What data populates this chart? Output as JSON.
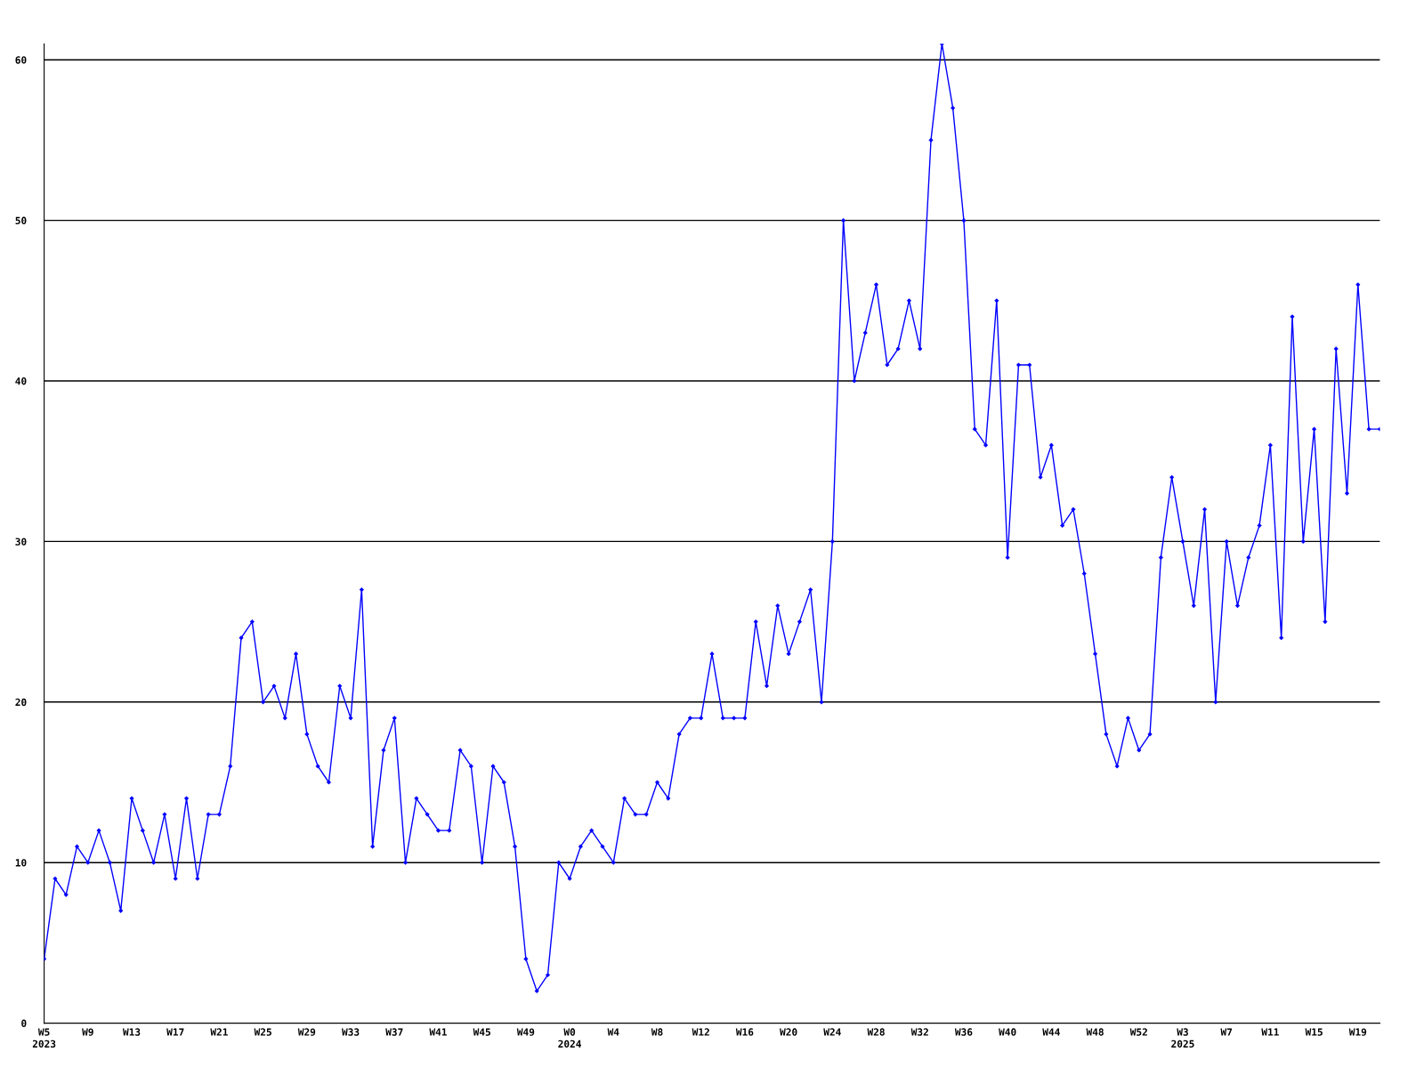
{
  "chart_data": {
    "type": "line",
    "color": "#0000ff",
    "marker": "diamond",
    "line_style": "solid",
    "grid": "y",
    "legend": false,
    "categories": [
      "W5\n2023",
      null,
      null,
      null,
      "W9",
      null,
      null,
      null,
      "W13",
      null,
      null,
      null,
      "W17",
      null,
      null,
      null,
      "W21",
      null,
      null,
      null,
      "W25",
      null,
      null,
      null,
      "W29",
      null,
      null,
      null,
      "W33",
      null,
      null,
      null,
      "W37",
      null,
      null,
      null,
      "W41",
      null,
      null,
      null,
      "W45",
      null,
      null,
      null,
      "W49",
      null,
      null,
      null,
      "W0\n2024",
      null,
      null,
      null,
      "W4",
      null,
      null,
      null,
      "W8",
      null,
      null,
      null,
      "W12",
      null,
      null,
      null,
      "W16",
      null,
      null,
      null,
      "W20",
      null,
      null,
      null,
      "W24",
      null,
      null,
      null,
      "W28",
      null,
      null,
      null,
      "W32",
      null,
      null,
      null,
      "W36",
      null,
      null,
      null,
      "W40",
      null,
      null,
      null,
      "W44",
      null,
      null,
      null,
      "W48",
      null,
      null,
      null,
      "W52",
      null,
      null,
      null,
      "W3\n2025",
      null,
      null,
      null,
      "W7",
      null,
      null,
      null,
      "W11",
      null,
      null,
      null,
      "W15",
      null,
      null,
      null,
      "W19",
      null,
      null
    ],
    "values": [
      4,
      9,
      8,
      11,
      10,
      12,
      10,
      7,
      14,
      12,
      10,
      13,
      9,
      14,
      9,
      13,
      13,
      16,
      24,
      25,
      20,
      21,
      19,
      23,
      18,
      16,
      15,
      21,
      19,
      27,
      11,
      17,
      19,
      10,
      14,
      13,
      12,
      12,
      17,
      16,
      10,
      16,
      15,
      11,
      4,
      2,
      3,
      10,
      9,
      11,
      12,
      11,
      10,
      14,
      13,
      13,
      15,
      14,
      18,
      19,
      19,
      23,
      19,
      19,
      19,
      25,
      21,
      26,
      23,
      25,
      27,
      20,
      30,
      50,
      40,
      43,
      46,
      41,
      42,
      45,
      42,
      55,
      61,
      57,
      50,
      37,
      36,
      45,
      29,
      41,
      41,
      34,
      36,
      31,
      32,
      28,
      23,
      18,
      16,
      19,
      17,
      18,
      29,
      34,
      30,
      26,
      32,
      20,
      30,
      26,
      29,
      31,
      36,
      24,
      44,
      30,
      37,
      25,
      42,
      33,
      46,
      37,
      37
    ],
    "ylim": [
      0,
      61
    ],
    "yticks": [
      0,
      10,
      20,
      30,
      40,
      50,
      60
    ]
  }
}
